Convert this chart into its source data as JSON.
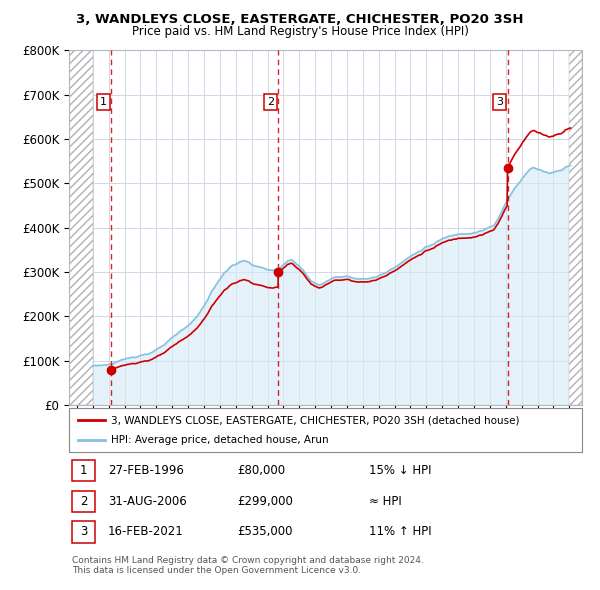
{
  "title": "3, WANDLEYS CLOSE, EASTERGATE, CHICHESTER, PO20 3SH",
  "subtitle": "Price paid vs. HM Land Registry's House Price Index (HPI)",
  "legend_line1": "3, WANDLEYS CLOSE, EASTERGATE, CHICHESTER, PO20 3SH (detached house)",
  "legend_line2": "HPI: Average price, detached house, Arun",
  "transactions": [
    {
      "label": "1",
      "date": "27-FEB-1996",
      "price": 80000,
      "hpi_rel": "15% ↓ HPI",
      "year": 1996.15
    },
    {
      "label": "2",
      "date": "31-AUG-2006",
      "price": 299000,
      "hpi_rel": "≈ HPI",
      "year": 2006.67
    },
    {
      "label": "3",
      "date": "16-FEB-2021",
      "price": 535000,
      "hpi_rel": "11% ↑ HPI",
      "year": 2021.12
    }
  ],
  "footer_line1": "Contains HM Land Registry data © Crown copyright and database right 2024.",
  "footer_line2": "This data is licensed under the Open Government Licence v3.0.",
  "hpi_color": "#85c1e0",
  "hpi_fill_color": "#d6eaf8",
  "price_color": "#cc0000",
  "ylim": [
    0,
    800000
  ],
  "xlim_start": 1993.5,
  "xlim_end": 2025.8
}
